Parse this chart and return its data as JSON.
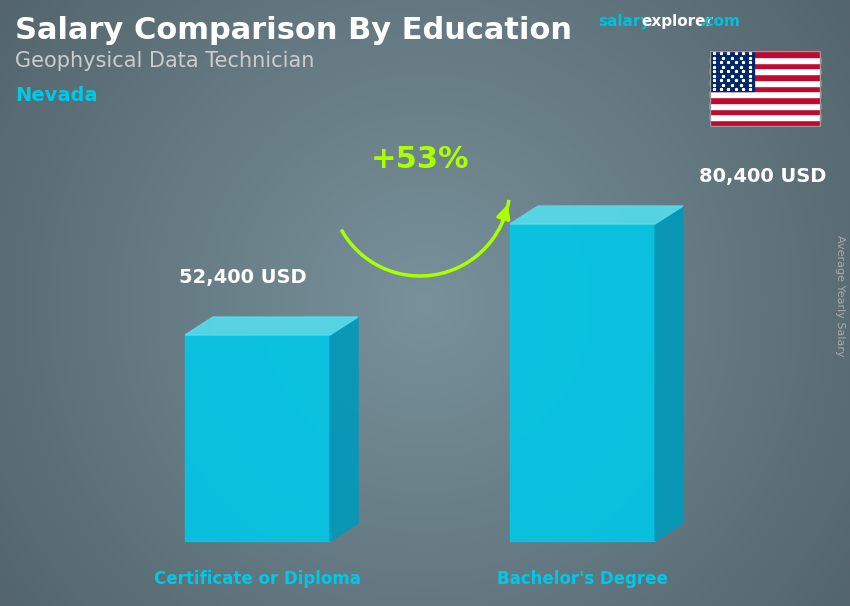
{
  "title": "Salary Comparison By Education",
  "subtitle": "Geophysical Data Technician",
  "location": "Nevada",
  "categories": [
    "Certificate or Diploma",
    "Bachelor's Degree"
  ],
  "values": [
    52400,
    80400
  ],
  "value_labels": [
    "52,400 USD",
    "80,400 USD"
  ],
  "bar_color": "#00C8E8",
  "bar_top_color": "#55DDEE",
  "bar_side_color": "#0099BB",
  "pct_change": "+53%",
  "pct_color": "#AAFF00",
  "bg_color": "#5a6a72",
  "title_color": "#FFFFFF",
  "subtitle_color": "#CCCCCC",
  "location_color": "#00C8E8",
  "category_color": "#00C8E8",
  "value_label_color": "#FFFFFF",
  "salary_label_color": "#AAAAAA",
  "salary_label_text": "Average Yearly Salary",
  "website_color_salary": "#00BFDF",
  "website_color_rest": "#FFFFFF",
  "flag_stripe_red": "#BF0A30",
  "flag_canton": "#002868"
}
